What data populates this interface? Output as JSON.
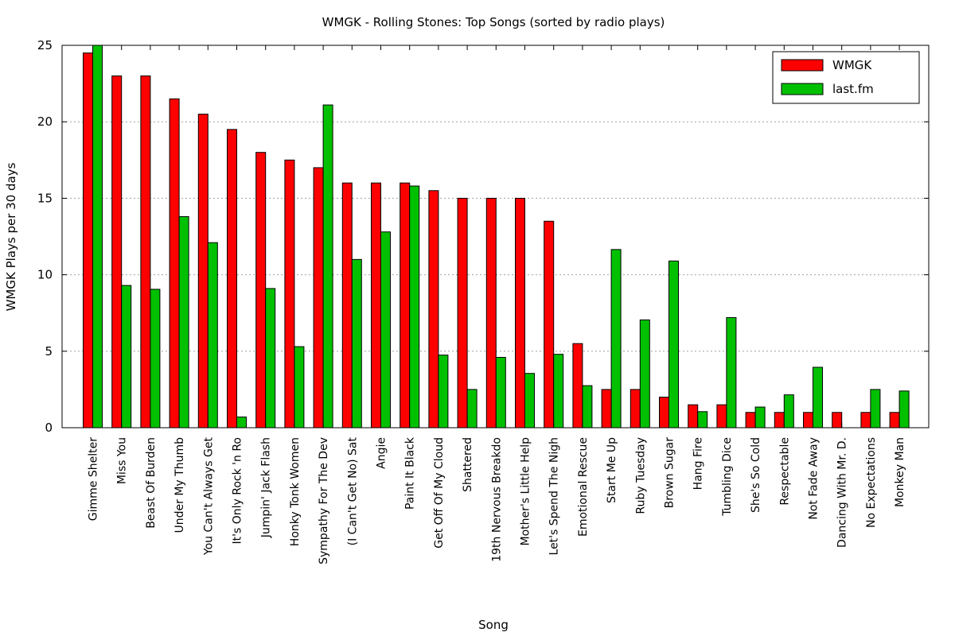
{
  "chart_data": {
    "type": "bar",
    "title": "WMGK - Rolling Stones: Top Songs (sorted by radio plays)",
    "xlabel": "Song",
    "ylabel": "WMGK Plays per 30 days",
    "ylim": [
      0,
      25
    ],
    "yticks": [
      "0",
      "5",
      "10",
      "15",
      "20",
      "25"
    ],
    "grid": true,
    "legend_position": "top-right",
    "categories": [
      "Gimme Shelter",
      "Miss You",
      "Beast Of Burden",
      "Under My Thumb",
      "You Can't Always Get",
      "It's Only Rock 'n Ro",
      "Jumpin' Jack Flash",
      "Honky Tonk Women",
      "Sympathy For The Dev",
      "(I Can't Get No) Sat",
      "Angie",
      "Paint It Black",
      "Get Off Of My Cloud",
      "Shattered",
      "19th Nervous Breakdo",
      "Mother's Little Help",
      "Let's Spend The Nigh",
      "Emotional Rescue",
      "Start Me Up",
      "Ruby Tuesday",
      "Brown Sugar",
      "Hang Fire",
      "Tumbling Dice",
      "She's So Cold",
      "Respectable",
      "Not Fade Away",
      "Dancing With Mr. D.",
      "No Expectations",
      "Monkey Man"
    ],
    "series": [
      {
        "name": "WMGK",
        "color": "#ff0000",
        "values": [
          24.5,
          23,
          23,
          21.5,
          20.5,
          19.5,
          18,
          17.5,
          17,
          16,
          16,
          16,
          15.5,
          15,
          15,
          15,
          13.5,
          5.5,
          2.5,
          2.5,
          2,
          1.5,
          1.5,
          1,
          1,
          1,
          1,
          1,
          1
        ]
      },
      {
        "name": "last.fm",
        "color": "#00c000",
        "values": [
          25,
          9.3,
          9.05,
          13.8,
          12.1,
          0.7,
          9.1,
          5.3,
          21.1,
          11,
          12.8,
          15.8,
          4.75,
          2.5,
          4.6,
          3.55,
          4.8,
          2.75,
          11.65,
          7.05,
          10.9,
          1.05,
          7.2,
          1.35,
          2.15,
          3.95,
          0,
          2.5,
          2.4
        ]
      }
    ]
  }
}
